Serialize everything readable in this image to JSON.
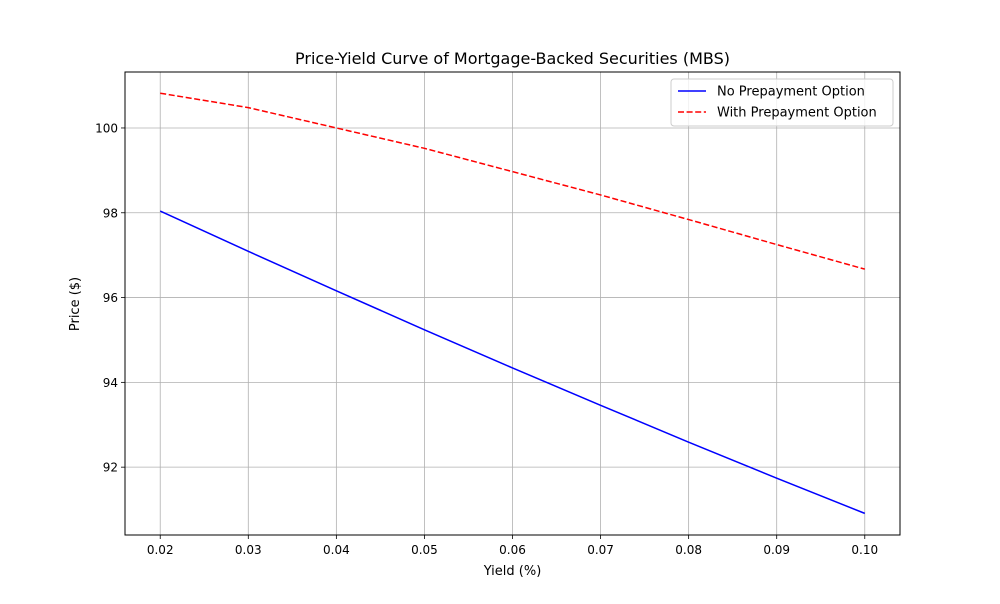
{
  "chart_data": {
    "type": "line",
    "title": "Price-Yield Curve of Mortgage-Backed Securities (MBS)",
    "xlabel": "Yield (%)",
    "ylabel": "Price ($)",
    "xlim": [
      0.016,
      0.104
    ],
    "ylim": [
      90.4,
      101.32
    ],
    "xticks": [
      0.02,
      0.03,
      0.04,
      0.05,
      0.06,
      0.07,
      0.08,
      0.09,
      0.1
    ],
    "xtick_labels": [
      "0.02",
      "0.03",
      "0.04",
      "0.05",
      "0.06",
      "0.07",
      "0.08",
      "0.09",
      "0.10"
    ],
    "yticks": [
      92,
      94,
      96,
      98,
      100
    ],
    "ytick_labels": [
      "92",
      "94",
      "96",
      "98",
      "100"
    ],
    "grid": true,
    "legend_position": "top-right",
    "x": [
      0.02,
      0.03,
      0.04,
      0.05,
      0.06,
      0.07,
      0.08,
      0.09,
      0.1
    ],
    "series": [
      {
        "name": "No Prepayment Option",
        "color": "#0000ff",
        "style": "solid",
        "values": [
          98.04,
          97.09,
          96.16,
          95.24,
          94.34,
          93.46,
          92.59,
          91.74,
          90.91
        ]
      },
      {
        "name": "With Prepayment Option",
        "color": "#ff0000",
        "style": "dashed",
        "values": [
          100.82,
          100.48,
          100.0,
          99.52,
          98.97,
          98.42,
          97.84,
          97.25,
          96.67
        ]
      }
    ]
  }
}
